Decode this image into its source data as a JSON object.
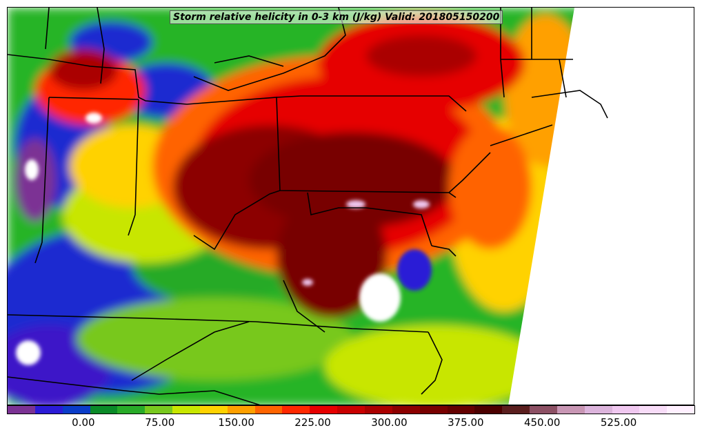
{
  "map": {
    "title": "Storm relative helicity in 0-3 km (J/kg) Valid: 201805150200"
  },
  "colorbar": {
    "colors": [
      "#7b3294",
      "#2b1bd6",
      "#0a3cc8",
      "#0a8a28",
      "#28aa28",
      "#78c81e",
      "#c8e600",
      "#ffd200",
      "#ffa000",
      "#ff6400",
      "#ff2800",
      "#e60000",
      "#c80000",
      "#aa0000",
      "#8c0000",
      "#780000",
      "#640000",
      "#4b0000",
      "#5a1e1e",
      "#8c5064",
      "#c896b4",
      "#dcb4dc",
      "#f0c8f0",
      "#f8dcf8",
      "#fff0ff"
    ],
    "tick_labels": [
      "0.00",
      "75.00",
      "150.00",
      "225.00",
      "300.00",
      "375.00",
      "450.00",
      "525.00"
    ]
  }
}
